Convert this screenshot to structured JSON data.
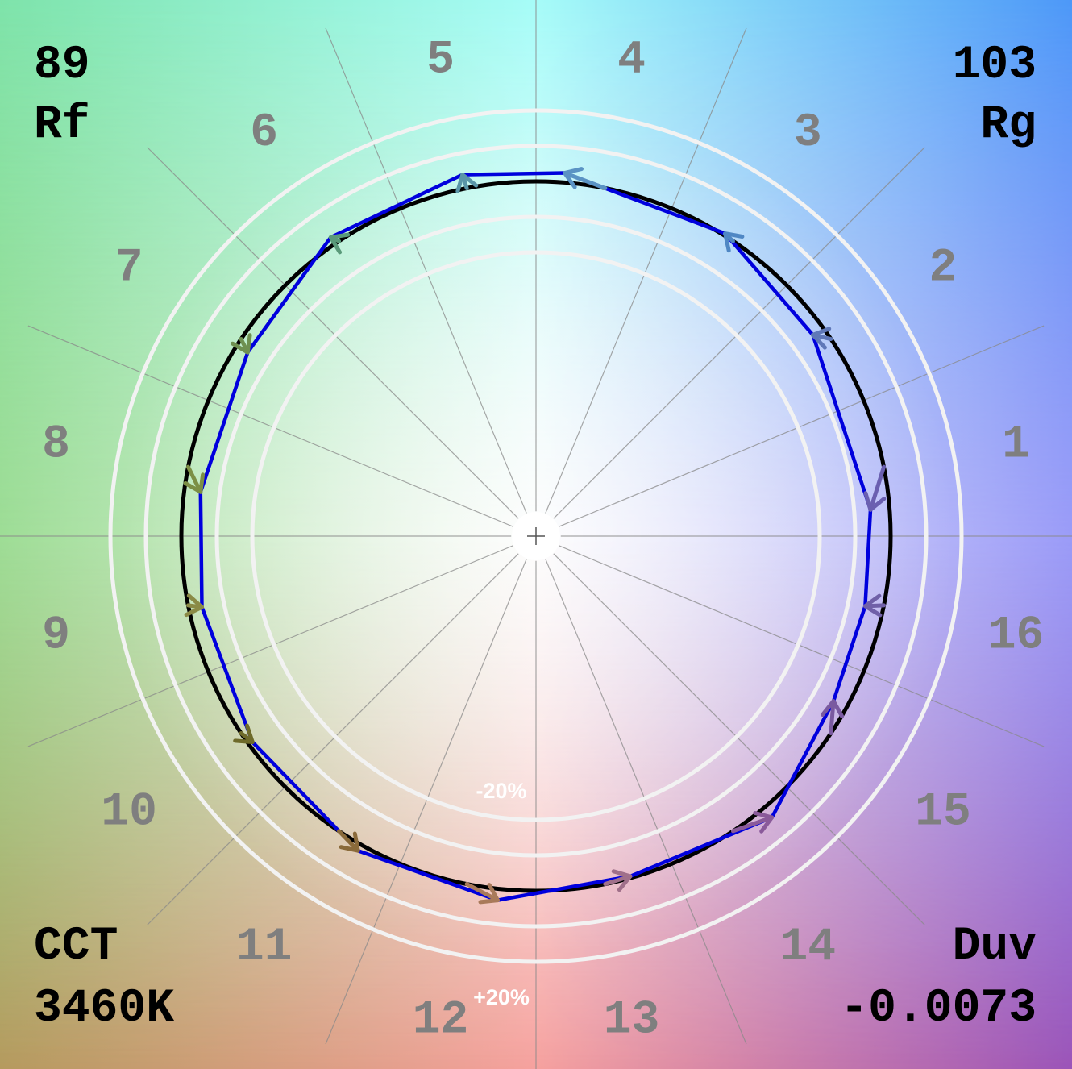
{
  "metrics": {
    "rf_value": "89",
    "rf_label": "Rf",
    "rg_value": "103",
    "rg_label": "Rg",
    "cct_label": "CCT",
    "cct_value": "3460K",
    "duv_label": "Duv",
    "duv_value": "-0.0073"
  },
  "colors": {
    "test_polygon": "#0000dd",
    "reference_circle": "#000000",
    "rings": "#f2f2f2",
    "spokes": "#8a8a8a",
    "bin_numbers": "#7f7f7f"
  },
  "chart_data": {
    "type": "polar-vector",
    "ring_labels": [
      "-20%",
      "+20%"
    ],
    "bins": [
      "1",
      "2",
      "3",
      "4",
      "5",
      "6",
      "7",
      "8",
      "9",
      "10",
      "11",
      "12",
      "13",
      "14",
      "15",
      "16"
    ],
    "bin_angles_deg": [
      11.25,
      33.75,
      56.25,
      78.75,
      101.25,
      123.75,
      146.25,
      168.75,
      191.25,
      213.75,
      236.25,
      258.75,
      281.25,
      303.75,
      326.25,
      348.75
    ],
    "reference_radius": 1.0,
    "ring_radii": [
      0.8,
      0.9,
      1.1,
      1.2
    ],
    "test_vertices": [
      {
        "bin": "1",
        "angle_deg": 4.5,
        "radius": 0.946
      },
      {
        "bin": "2",
        "angle_deg": 36.0,
        "radius": 0.965
      },
      {
        "bin": "3",
        "angle_deg": 58.0,
        "radius": 1.006
      },
      {
        "bin": "4",
        "angle_deg": 85.5,
        "radius": 1.027
      },
      {
        "bin": "5",
        "angle_deg": 101.5,
        "radius": 1.04
      },
      {
        "bin": "6",
        "angle_deg": 124.5,
        "radius": 1.022
      },
      {
        "bin": "7",
        "angle_deg": 147.5,
        "radius": 0.964
      },
      {
        "bin": "8",
        "angle_deg": 172.5,
        "radius": 0.954
      },
      {
        "bin": "9",
        "angle_deg": 192.0,
        "radius": 0.963
      },
      {
        "bin": "10",
        "angle_deg": 216.0,
        "radius": 0.988
      },
      {
        "bin": "11",
        "angle_deg": 240.5,
        "radius": 1.019
      },
      {
        "bin": "12",
        "angle_deg": 264.0,
        "radius": 1.032
      },
      {
        "bin": "13",
        "angle_deg": 285.5,
        "radius": 0.995
      },
      {
        "bin": "14",
        "angle_deg": 310.0,
        "radius": 1.035
      },
      {
        "bin": "15",
        "angle_deg": 331.0,
        "radius": 0.959
      },
      {
        "bin": "16",
        "angle_deg": 348.0,
        "radius": 0.949
      }
    ],
    "grid": true,
    "legend": "none"
  }
}
